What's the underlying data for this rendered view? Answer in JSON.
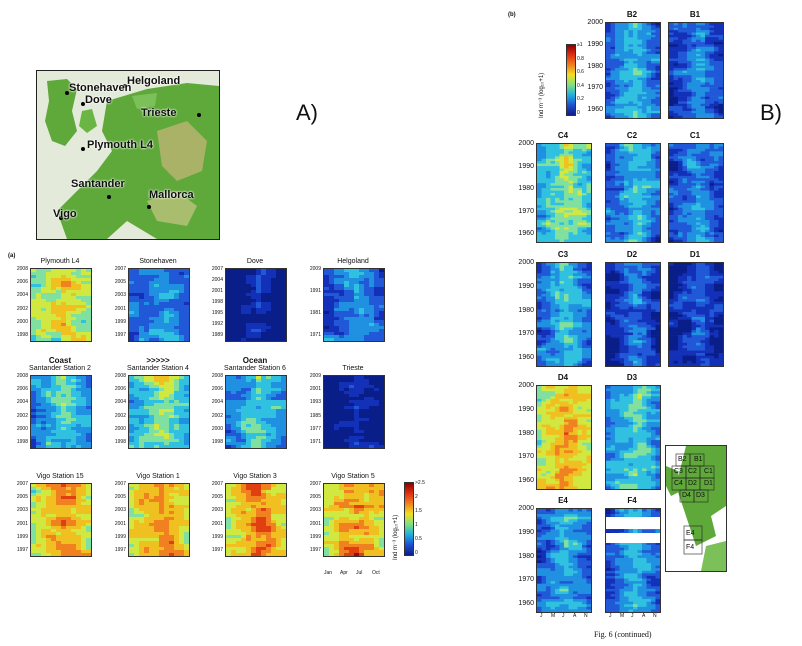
{
  "figure": {
    "label_A": "A)",
    "label_B": "B)",
    "caption": "Fig. 6 (continued)",
    "panel_a_tag": "(a)",
    "panel_b_tag": "(b)"
  },
  "map": {
    "locations": [
      "Helgoland",
      "Stonehaven",
      "Dove",
      "Trieste",
      "Plymouth L4",
      "Santander",
      "Mallorca",
      "Vigo"
    ]
  },
  "panel_a": {
    "rows": [
      {
        "panels": [
          {
            "title": "Plymouth L4",
            "yticks": [
              "2008",
              "2006",
              "2004",
              "2002",
              "2000",
              "1998"
            ]
          },
          {
            "title": "Stonehaven",
            "yticks": [
              "2007",
              "2005",
              "2003",
              "2001",
              "1999",
              "1997"
            ]
          },
          {
            "title": "Dove",
            "yticks": [
              "2007",
              "2004",
              "2001",
              "1998",
              "1995",
              "1992",
              "1989"
            ]
          },
          {
            "title": "Helgoland",
            "yticks": [
              "2009",
              "1991",
              "1981",
              "1971"
            ]
          }
        ]
      },
      {
        "header": [
          "Coast",
          ">>>>>",
          "Ocean"
        ],
        "panels": [
          {
            "title": "Santander Station 2",
            "yticks": [
              "2008",
              "2006",
              "2004",
              "2002",
              "2000",
              "1998"
            ]
          },
          {
            "title": "Santander Station 4",
            "yticks": [
              "2008",
              "2006",
              "2004",
              "2002",
              "2000",
              "1998"
            ]
          },
          {
            "title": "Santander Station 6",
            "yticks": [
              "2008",
              "2006",
              "2004",
              "2002",
              "2000",
              "1998"
            ]
          },
          {
            "title": "Trieste",
            "yticks": [
              "2009",
              "2001",
              "1993",
              "1985",
              "1977",
              "1971"
            ]
          }
        ]
      },
      {
        "panels": [
          {
            "title": "Vigo Station 15",
            "yticks": [
              "2007",
              "2005",
              "2003",
              "2001",
              "1999",
              "1997"
            ]
          },
          {
            "title": "Vigo Station 1",
            "yticks": [
              "2007",
              "2005",
              "2003",
              "2001",
              "1999",
              "1997"
            ]
          },
          {
            "title": "Vigo Station 3",
            "yticks": [
              "2007",
              "2005",
              "2003",
              "2001",
              "1999",
              "1997"
            ]
          },
          {
            "title": "Vigo Station 5",
            "yticks": [
              "2007",
              "2005",
              "2003",
              "2001",
              "1999",
              "1997"
            ]
          }
        ]
      }
    ],
    "colorbar": {
      "ticks": [
        ">2.5",
        "2",
        "1.5",
        "1",
        "0.5",
        "0"
      ],
      "label": "Ind m⁻³ (log₁₀+1)"
    },
    "month_ticks": [
      "Jan",
      "Apr",
      "Jul",
      "Oct"
    ]
  },
  "panel_b": {
    "colorbar": {
      "ticks": [
        "≥1",
        "0.8",
        "0.6",
        "0.4",
        "0.2",
        "0"
      ],
      "label": "Ind m⁻³ (log₁₀+1)"
    },
    "yticks": [
      "2000",
      "1990",
      "1980",
      "1970",
      "1960"
    ],
    "titles": [
      "B2",
      "B1",
      "C4",
      "C2",
      "C1",
      "C3",
      "D2",
      "D1",
      "D4",
      "D3",
      "E4",
      "F4"
    ],
    "month_ticks": [
      "J",
      "M",
      "J",
      "A",
      "N"
    ],
    "box_labels": [
      "B1",
      "B2",
      "C1",
      "C2",
      "C3",
      "C4",
      "D1",
      "D2",
      "D3",
      "D4",
      "E4",
      "F4"
    ]
  },
  "colors": {
    "map_land": "#5fa83a",
    "map_sea": "#e4ead9",
    "heat_low": "#0a1e8a",
    "heat_high": "#b01010"
  }
}
